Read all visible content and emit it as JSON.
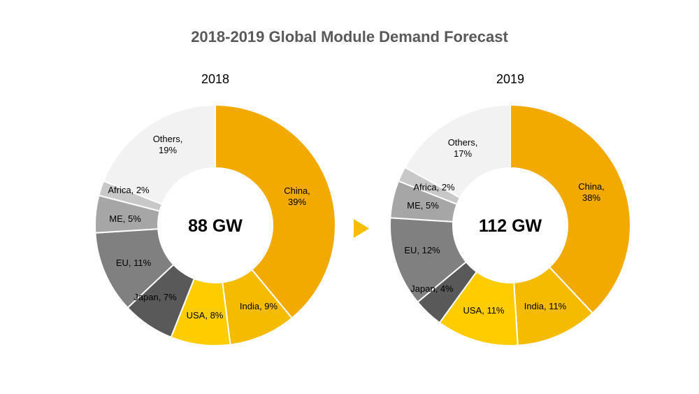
{
  "title": "2018-2019 Global Module Demand Forecast",
  "arrow_icon": "right-triangle-arrow-icon",
  "colors": {
    "arrow": "#F5BE00"
  },
  "chart_data": [
    {
      "type": "pie",
      "subtitle": "2018",
      "center_label": "88 GW",
      "slices": [
        {
          "name": "China",
          "value": 39,
          "label": [
            "China,",
            "39%"
          ],
          "color": "#F2A900"
        },
        {
          "name": "India",
          "value": 9,
          "label": [
            "India, 9%"
          ],
          "color": "#F5BB00"
        },
        {
          "name": "USA",
          "value": 8,
          "label": [
            "USA, 8%"
          ],
          "color": "#FFCC00"
        },
        {
          "name": "Japan",
          "value": 7,
          "label": [
            "Japan, 7%"
          ],
          "color": "#595959"
        },
        {
          "name": "EU",
          "value": 11,
          "label": [
            "EU, 11%"
          ],
          "color": "#808080"
        },
        {
          "name": "ME",
          "value": 5,
          "label": [
            "ME, 5%"
          ],
          "color": "#A6A6A6"
        },
        {
          "name": "Africa",
          "value": 2,
          "label": [
            "Africa, 2%"
          ],
          "color": "#C8C8C8"
        },
        {
          "name": "Others",
          "value": 19,
          "label": [
            "Others,",
            "19%"
          ],
          "color": "#F2F2F2"
        }
      ]
    },
    {
      "type": "pie",
      "subtitle": "2019",
      "center_label": "112 GW",
      "slices": [
        {
          "name": "China",
          "value": 38,
          "label": [
            "China,",
            "38%"
          ],
          "color": "#F2A900"
        },
        {
          "name": "India",
          "value": 11,
          "label": [
            "India, 11%"
          ],
          "color": "#F5BB00"
        },
        {
          "name": "USA",
          "value": 11,
          "label": [
            "USA, 11%"
          ],
          "color": "#FFCC00"
        },
        {
          "name": "Japan",
          "value": 4,
          "label": [
            "Japan, 4%"
          ],
          "color": "#595959"
        },
        {
          "name": "EU",
          "value": 12,
          "label": [
            "EU, 12%"
          ],
          "color": "#808080"
        },
        {
          "name": "ME",
          "value": 5,
          "label": [
            "ME, 5%"
          ],
          "color": "#A6A6A6"
        },
        {
          "name": "Africa",
          "value": 2,
          "label": [
            "Africa, 2%"
          ],
          "color": "#C8C8C8"
        },
        {
          "name": "Others",
          "value": 17,
          "label": [
            "Others,",
            "17%"
          ],
          "color": "#F2F2F2"
        }
      ]
    }
  ]
}
